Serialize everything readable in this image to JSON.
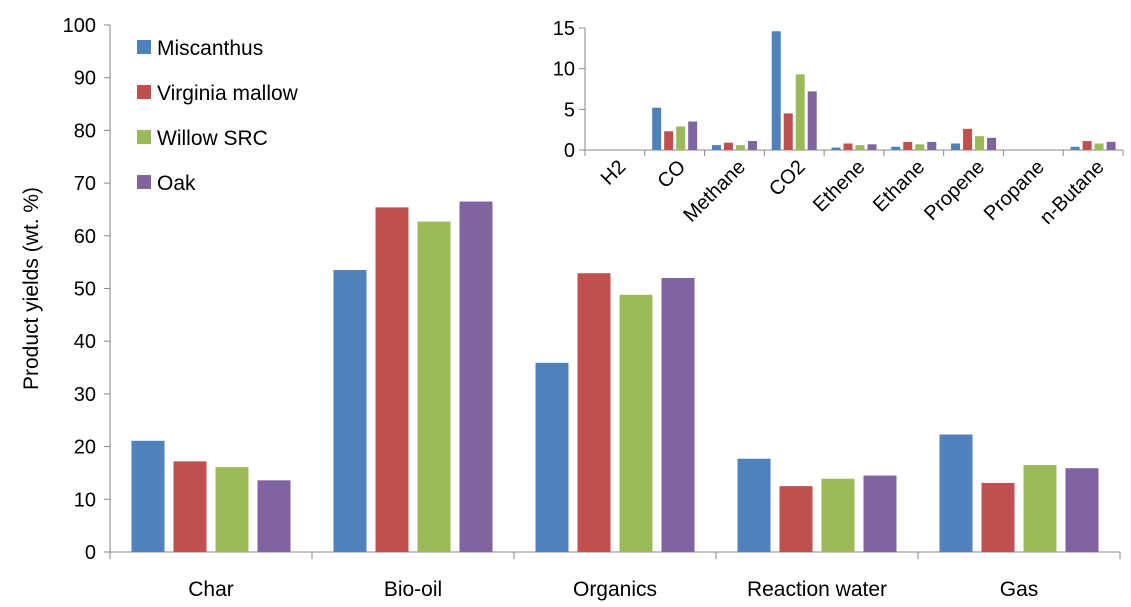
{
  "colors": {
    "Miscanthus": "#4F81BD",
    "Virginia mallow": "#C0504D",
    "Willow SRC": "#9BBB59",
    "Oak": "#8064A2"
  },
  "legend": {
    "placement": "top-left",
    "items": [
      "Miscanthus",
      "Virginia mallow",
      "Willow SRC",
      "Oak"
    ]
  },
  "chart_data": [
    {
      "type": "bar",
      "title": "",
      "xlabel": "",
      "ylabel": "Product yields (wt. %)",
      "ylim": [
        0,
        100
      ],
      "yticks": [
        0,
        10,
        20,
        30,
        40,
        50,
        60,
        70,
        80,
        90,
        100
      ],
      "grid": false,
      "categories": [
        "Char",
        "Bio-oil",
        "Organics",
        "Reaction water",
        "Gas"
      ],
      "series": [
        {
          "name": "Miscanthus",
          "values": [
            21.1,
            53.5,
            35.9,
            17.7,
            22.3
          ]
        },
        {
          "name": "Virginia mallow",
          "values": [
            17.2,
            65.4,
            52.9,
            12.5,
            13.1
          ]
        },
        {
          "name": "Willow SRC",
          "values": [
            16.1,
            62.7,
            48.8,
            13.9,
            16.5
          ]
        },
        {
          "name": "Oak",
          "values": [
            13.6,
            66.5,
            52.0,
            14.5,
            15.9
          ]
        }
      ]
    },
    {
      "type": "bar",
      "title": "",
      "xlabel": "",
      "ylabel": "",
      "ylim": [
        0,
        15
      ],
      "yticks": [
        0,
        5,
        10,
        15
      ],
      "grid": false,
      "categories": [
        "H2",
        "CO",
        "Methane",
        "CO2",
        "Ethene",
        "Ethane",
        "Propene",
        "Propane",
        "n-Butane"
      ],
      "series": [
        {
          "name": "Miscanthus",
          "values": [
            0.0,
            5.2,
            0.6,
            14.6,
            0.3,
            0.4,
            0.8,
            0.0,
            0.4
          ]
        },
        {
          "name": "Virginia mallow",
          "values": [
            0.0,
            2.3,
            0.9,
            4.5,
            0.8,
            1.0,
            2.6,
            0.0,
            1.1
          ]
        },
        {
          "name": "Willow SRC",
          "values": [
            0.0,
            2.9,
            0.6,
            9.3,
            0.6,
            0.7,
            1.7,
            0.0,
            0.8
          ]
        },
        {
          "name": "Oak",
          "values": [
            0.0,
            3.5,
            1.1,
            7.2,
            0.7,
            1.0,
            1.5,
            0.0,
            1.0
          ]
        }
      ]
    }
  ]
}
